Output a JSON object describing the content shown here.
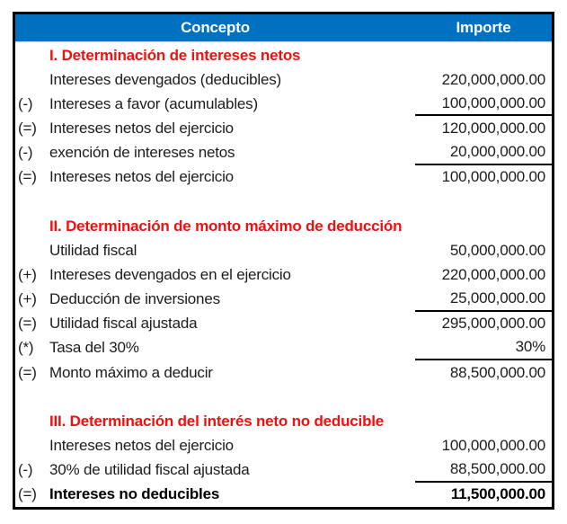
{
  "table": {
    "header": {
      "concept": "Concepto",
      "importe": "Importe"
    },
    "colors": {
      "header_bg": "#0070C0",
      "header_text": "#FFFFFF",
      "section_text": "#ED1111",
      "border": "#000000"
    },
    "rows": [
      {
        "prefix": "",
        "label": "I. Determinación de intereses netos",
        "value": ""
      },
      {
        "prefix": "",
        "label": "Intereses devengados (deducibles)",
        "value": "220,000,000.00"
      },
      {
        "prefix": "(-)",
        "label": "Intereses a favor (acumulables)",
        "value": "100,000,000.00"
      },
      {
        "prefix": "(=)",
        "label": "Intereses netos del ejercicio",
        "value": "120,000,000.00"
      },
      {
        "prefix": "(-)",
        "label": "exención de intereses netos",
        "value": "20,000,000.00"
      },
      {
        "prefix": "(=)",
        "label": "Intereses netos del ejercicio",
        "value": "100,000,000.00"
      },
      {
        "prefix": "",
        "label": "",
        "value": ""
      },
      {
        "prefix": "",
        "label": "II. Determinación de monto máximo de deducción",
        "value": ""
      },
      {
        "prefix": "",
        "label": "Utilidad fiscal",
        "value": "50,000,000.00"
      },
      {
        "prefix": "(+)",
        "label": "Intereses devengados en el ejercicio",
        "value": "220,000,000.00"
      },
      {
        "prefix": "(+)",
        "label": "Deducción de inversiones",
        "value": "25,000,000.00"
      },
      {
        "prefix": "(=)",
        "label": "Utilidad fiscal ajustada",
        "value": "295,000,000.00"
      },
      {
        "prefix": "(*)",
        "label": "Tasa del 30%",
        "value": "30%"
      },
      {
        "prefix": "(=)",
        "label": "Monto máximo a deducir",
        "value": "88,500,000.00"
      },
      {
        "prefix": "",
        "label": "",
        "value": ""
      },
      {
        "prefix": "",
        "label": "III. Determinación del interés neto no deducible",
        "value": ""
      },
      {
        "prefix": "",
        "label": "Intereses netos del ejercicio",
        "value": "100,000,000.00"
      },
      {
        "prefix": "(-)",
        "label": "30% de utilidad fiscal ajustada",
        "value": "88,500,000.00"
      },
      {
        "prefix": "(=)",
        "label": "Intereses no deducibles",
        "value": "11,500,000.00"
      }
    ]
  }
}
